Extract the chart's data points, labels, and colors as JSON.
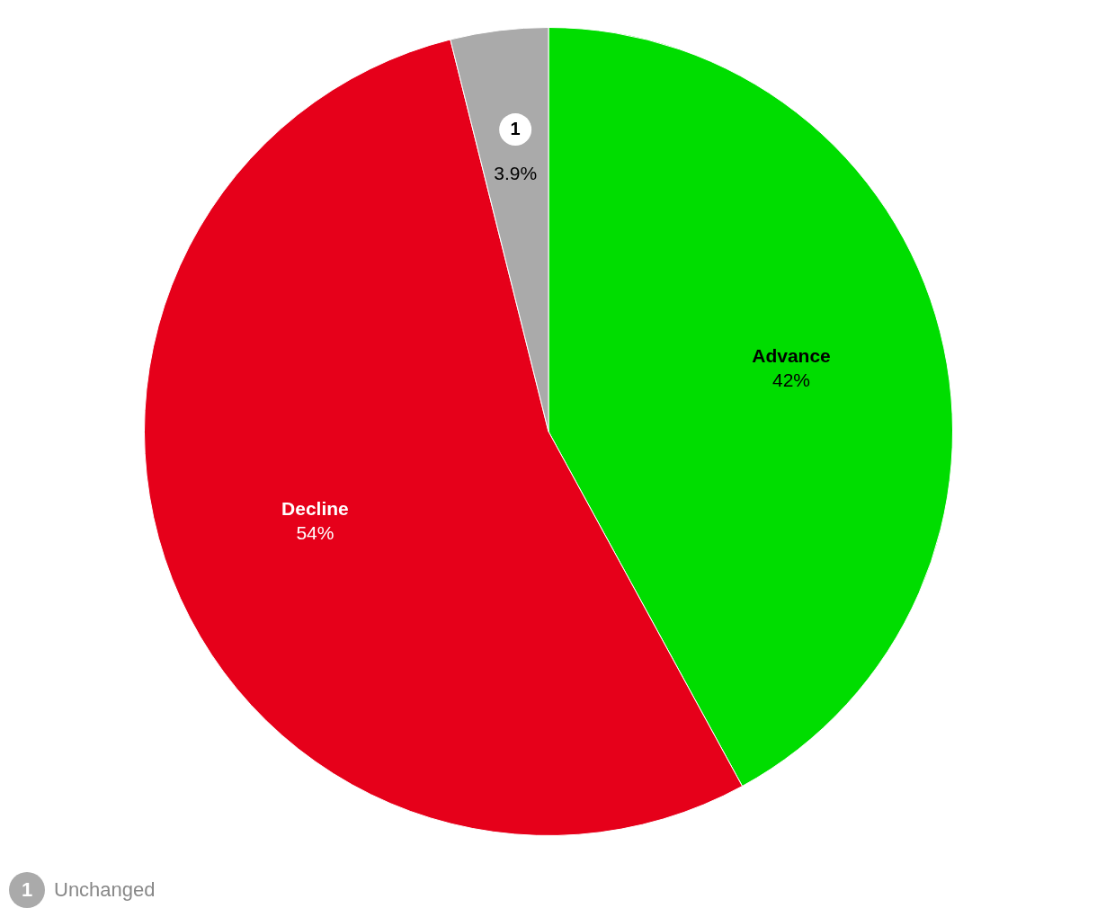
{
  "chart_data": {
    "type": "pie",
    "categories": [
      "Advance",
      "Decline",
      "Unchanged"
    ],
    "values": [
      42,
      54,
      3.9
    ],
    "value_labels": [
      "42%",
      "54%",
      "3.9%"
    ],
    "colors": [
      "#00dd00",
      "#e6001a",
      "#aaaaaa"
    ],
    "annotations": [
      "1"
    ],
    "legend": "bottom left"
  }
}
